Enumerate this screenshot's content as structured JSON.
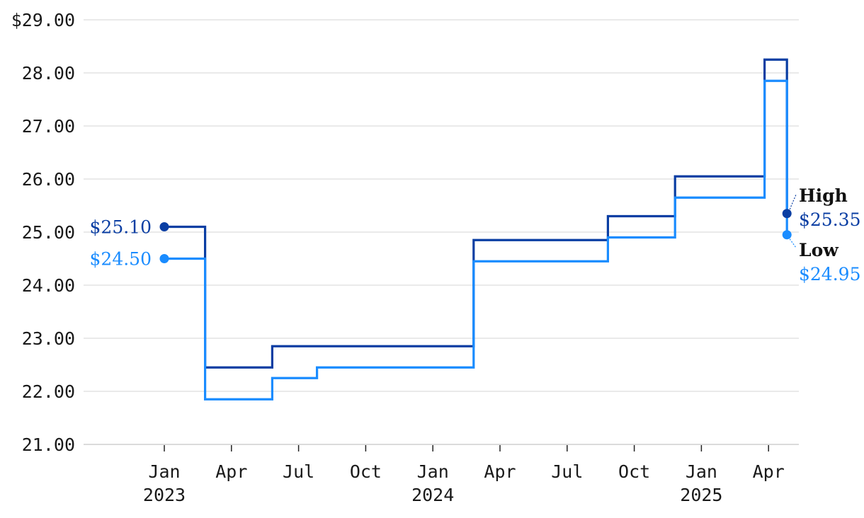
{
  "chart_data": {
    "type": "line",
    "step": true,
    "x_start": "2023-01",
    "x_end": "2025-04",
    "ylim": [
      21,
      29
    ],
    "y_ticks": [
      "$29.00",
      "28.00",
      "27.00",
      "26.00",
      "25.00",
      "24.00",
      "23.00",
      "22.00",
      "21.00"
    ],
    "x_ticks": [
      {
        "month": "Jan",
        "year": "2023"
      },
      {
        "month": "Apr",
        "year": ""
      },
      {
        "month": "Jul",
        "year": ""
      },
      {
        "month": "Oct",
        "year": ""
      },
      {
        "month": "Jan",
        "year": "2024"
      },
      {
        "month": "Apr",
        "year": ""
      },
      {
        "month": "Jul",
        "year": ""
      },
      {
        "month": "Oct",
        "year": ""
      },
      {
        "month": "Jan",
        "year": "2025"
      },
      {
        "month": "Apr",
        "year": ""
      }
    ],
    "series": [
      {
        "name": "High",
        "color": "#0a3ea3",
        "steps": [
          {
            "from": "2023-01",
            "value": 25.1
          },
          {
            "from": "2023-02",
            "value": 22.45
          },
          {
            "from": "2023-05",
            "value": 22.85
          },
          {
            "from": "2024-02",
            "value": 24.85
          },
          {
            "from": "2024-08",
            "value": 25.3
          },
          {
            "from": "2024-11",
            "value": 26.05
          },
          {
            "from": "2025-03",
            "value": 28.25
          },
          {
            "from": "2025-04",
            "value": 25.35
          }
        ],
        "start_label": "$25.10",
        "end_label": "$25.35"
      },
      {
        "name": "Low",
        "color": "#1a8cff",
        "steps": [
          {
            "from": "2023-01",
            "value": 24.5
          },
          {
            "from": "2023-02",
            "value": 21.85
          },
          {
            "from": "2023-05",
            "value": 22.25
          },
          {
            "from": "2023-07",
            "value": 22.45
          },
          {
            "from": "2024-02",
            "value": 24.45
          },
          {
            "from": "2024-08",
            "value": 24.9
          },
          {
            "from": "2024-11",
            "value": 25.65
          },
          {
            "from": "2025-03",
            "value": 27.85
          },
          {
            "from": "2025-04",
            "value": 24.95
          }
        ],
        "start_label": "$24.50",
        "end_label": "$24.95"
      }
    ]
  }
}
